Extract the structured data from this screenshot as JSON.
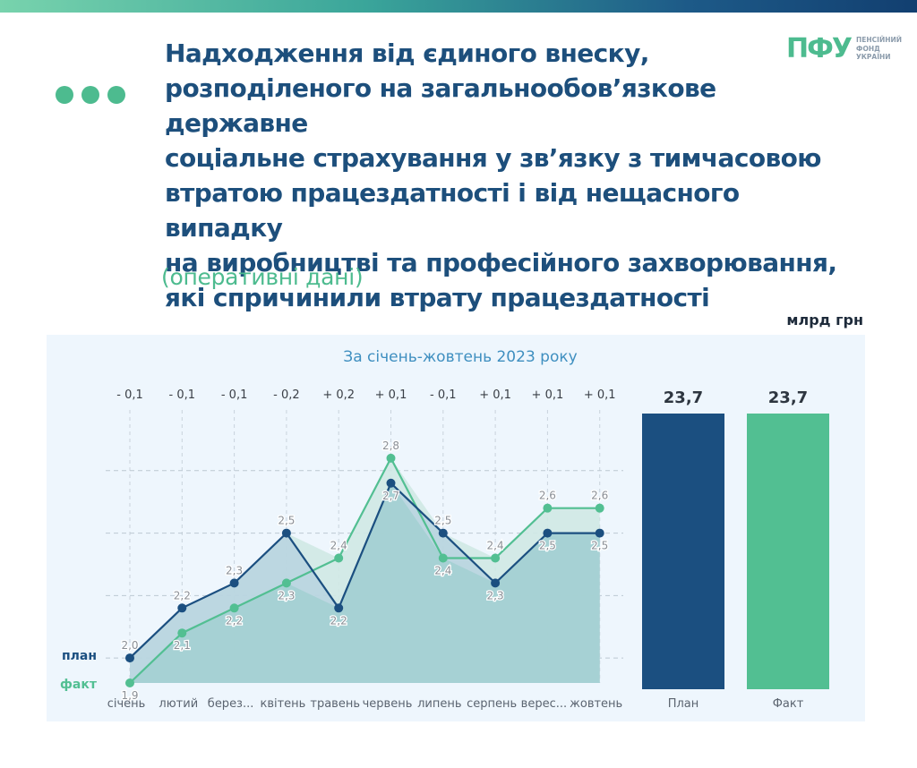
{
  "header": {
    "title": "Надходження від єдиного внеску,\nрозподіленого на загальнообов’язкове державне\nсоціальне страхування у зв’язку з тимчасовою\nвтратою працездатності і від нещасного випадку\nна виробництві та професійного захворювання,\nякі спричинили втрату працездатності",
    "subtitle": "(оперативні дані)",
    "unit": "млрд грн"
  },
  "logo": {
    "mark": "ПФУ",
    "text": "ПЕНСІЙНИЙ\nФОНД\nУКРАЇНИ"
  },
  "colors": {
    "plan": "#1b4f80",
    "fact": "#52bf92",
    "accent": "#4dbb8f",
    "title": "#1d4f7c"
  },
  "chart_data": [
    {
      "type": "line",
      "title": "За січень-жовтень 2023 року",
      "categories": [
        "січень",
        "лютий",
        "берез...",
        "квітень",
        "травень",
        "червень",
        "липень",
        "серпень",
        "верес...",
        "жовтень"
      ],
      "series": [
        {
          "name": "план",
          "values": [
            2.0,
            2.2,
            2.3,
            2.5,
            2.2,
            2.7,
            2.5,
            2.3,
            2.5,
            2.5
          ],
          "labels": [
            "2,0",
            "2,2",
            "2,3",
            "2,5",
            "2,2",
            "2,7",
            "2,5",
            "2,3",
            "2,5",
            "2,5"
          ]
        },
        {
          "name": "факт",
          "values": [
            1.9,
            2.1,
            2.2,
            2.3,
            2.4,
            2.8,
            2.4,
            2.4,
            2.6,
            2.6
          ],
          "labels": [
            "1,9",
            "2,1",
            "2,2",
            "2,3",
            "2,4",
            "2,8",
            "2,4",
            "2,4",
            "2,6",
            "2,6"
          ]
        }
      ],
      "differences": [
        "- 0,1",
        "- 0,1",
        "- 0,1",
        "- 0,2",
        "+ 0,2",
        "+ 0,1",
        "- 0,1",
        "+ 0,1",
        "+ 0,1",
        "+ 0,1"
      ],
      "ylim": [
        1.9,
        2.95
      ],
      "grid": true
    },
    {
      "type": "bar",
      "categories": [
        "План",
        "Факт"
      ],
      "values": [
        23.7,
        23.7
      ],
      "labels": [
        "23,7",
        "23,7"
      ]
    }
  ]
}
